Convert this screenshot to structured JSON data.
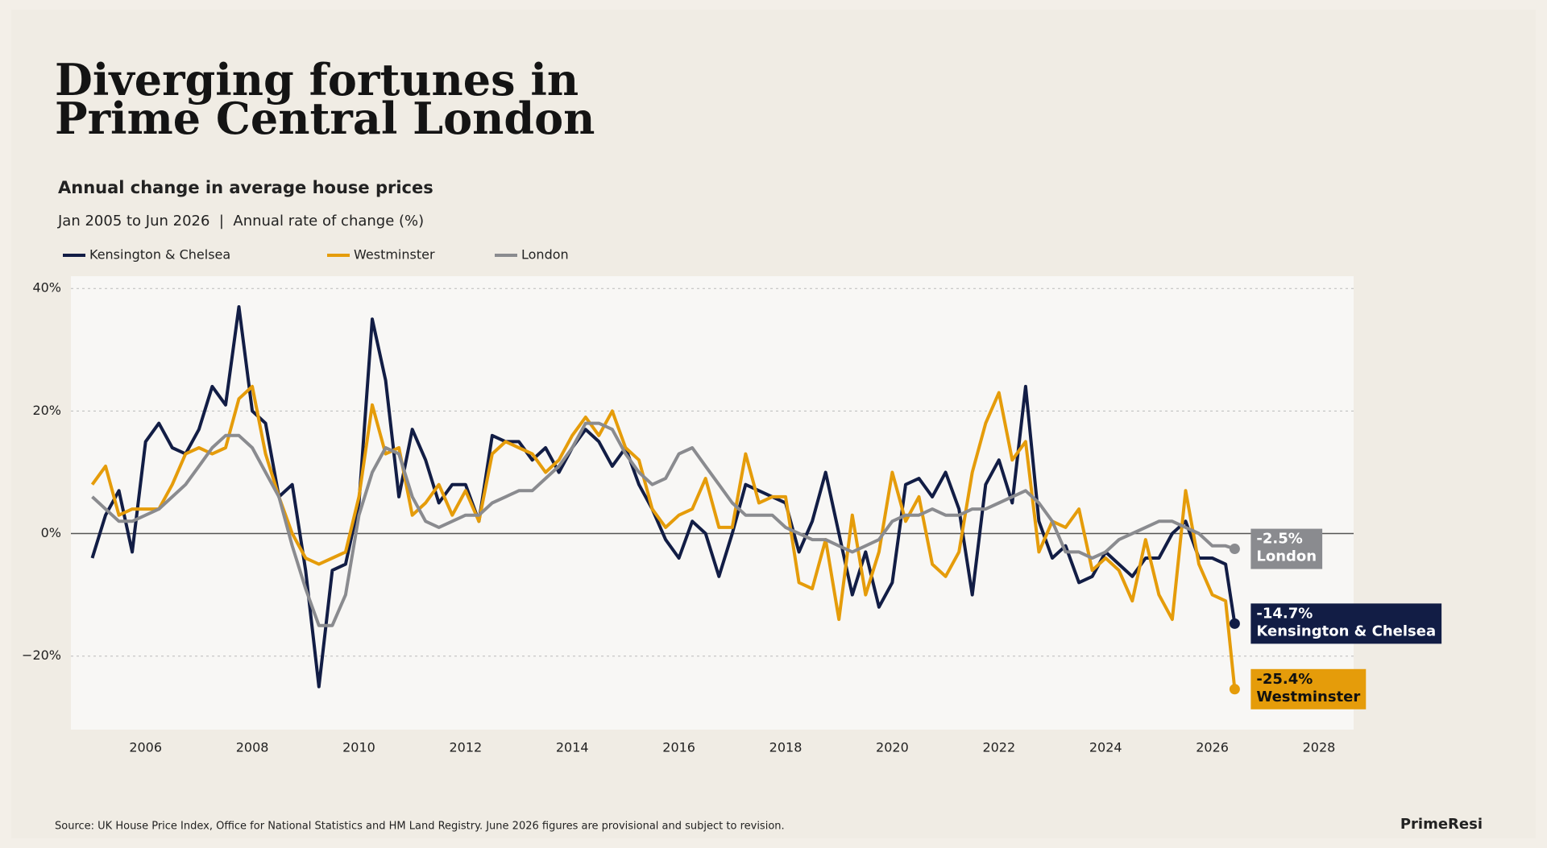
{
  "chart_data": {
    "type": "line",
    "title": [
      "Diverging fortunes in",
      "Prime Central London"
    ],
    "subtitle": "Annual change in average house prices",
    "description": "Jan 2005 to Jun 2026  |  Annual rate of change (%)",
    "source": "Source: UK House Price Index, Office for National Statistics and HM Land Registry. June 2026 figures are provisional and subject to revision.",
    "brand": "PrimeResi",
    "x": [
      2005,
      2005.25,
      2005.5,
      2005.75,
      2006,
      2006.25,
      2006.5,
      2006.75,
      2007,
      2007.25,
      2007.5,
      2007.75,
      2008,
      2008.25,
      2008.5,
      2008.75,
      2009,
      2009.25,
      2009.5,
      2009.75,
      2010,
      2010.25,
      2010.5,
      2010.75,
      2011,
      2011.25,
      2011.5,
      2011.75,
      2012,
      2012.25,
      2012.5,
      2012.75,
      2013,
      2013.25,
      2013.5,
      2013.75,
      2014,
      2014.25,
      2014.5,
      2014.75,
      2015,
      2015.25,
      2015.5,
      2015.75,
      2016,
      2016.25,
      2016.5,
      2016.75,
      2017,
      2017.25,
      2017.5,
      2017.75,
      2018,
      2018.25,
      2018.5,
      2018.75,
      2019,
      2019.25,
      2019.5,
      2019.75,
      2020,
      2020.25,
      2020.5,
      2020.75,
      2021,
      2021.25,
      2021.5,
      2021.75,
      2022,
      2022.25,
      2022.5,
      2022.75,
      2023,
      2023.25,
      2023.5,
      2023.75,
      2024,
      2024.25,
      2024.5,
      2024.75,
      2025,
      2025.25,
      2025.5,
      2025.75,
      2026,
      2026.25,
      2026.42
    ],
    "series": [
      {
        "name": "Kensington & Chelsea",
        "color": "#121d45",
        "label_text": "#ffffff",
        "values": [
          -4,
          3,
          7,
          -3,
          15,
          18,
          14,
          13,
          17,
          24,
          21,
          37,
          20,
          18,
          6,
          8,
          -6,
          -25,
          -6,
          -5,
          5,
          35,
          25,
          6,
          17,
          12,
          5,
          8,
          8,
          2,
          16,
          15,
          15,
          12,
          14,
          10,
          14,
          17,
          15,
          11,
          14,
          8,
          4,
          -1,
          -4,
          2,
          0,
          -7,
          0,
          8,
          7,
          6,
          5,
          -3,
          2,
          10,
          0,
          -10,
          -3,
          -12,
          -8,
          8,
          9,
          6,
          10,
          4,
          -10,
          8,
          12,
          5,
          24,
          2,
          -4,
          -2,
          -8,
          -7,
          -3,
          -5,
          -7,
          -4,
          -4,
          0,
          2,
          -4,
          -4,
          -5,
          -14.7
        ],
        "value_labels": [
          null,
          null,
          null,
          null,
          null,
          null,
          null,
          null,
          null,
          null,
          null,
          null,
          null,
          null,
          null,
          null,
          null,
          null,
          null,
          null,
          null,
          null,
          null,
          null,
          null,
          null,
          null,
          null,
          null,
          null,
          null,
          null,
          null,
          null,
          null,
          null,
          null,
          null,
          null,
          null,
          null,
          null,
          null,
          null,
          null,
          null,
          null,
          null,
          null,
          null,
          null,
          null,
          null,
          null,
          null,
          null,
          null,
          null,
          null,
          null,
          null,
          null,
          null,
          null,
          null,
          null,
          null,
          null,
          null,
          null,
          null,
          null,
          null,
          null,
          null,
          null,
          null,
          null,
          null,
          null,
          null,
          null,
          null,
          null,
          null,
          null,
          "-14.7%"
        ]
      },
      {
        "name": "Westminster",
        "color": "#e59c0a",
        "label_text": "#111111",
        "values": [
          8,
          11,
          3,
          4,
          4,
          4,
          8,
          13,
          14,
          13,
          14,
          22,
          24,
          13,
          6,
          0,
          -4,
          -5,
          -4,
          -3,
          6,
          21,
          13,
          14,
          3,
          5,
          8,
          3,
          7,
          2,
          13,
          15,
          14,
          13,
          10,
          12,
          16,
          19,
          16,
          20,
          14,
          12,
          4,
          1,
          3,
          4,
          9,
          1,
          1,
          13,
          5,
          6,
          6,
          -8,
          -9,
          -1,
          -14,
          3,
          -10,
          -3,
          10,
          2,
          6,
          -5,
          -7,
          -3,
          10,
          18,
          23,
          12,
          15,
          -3,
          2,
          1,
          4,
          -6,
          -4,
          -6,
          -11,
          -1,
          -10,
          -14,
          7,
          -5,
          -10,
          -11,
          -25.4
        ],
        "value_labels": [
          null,
          null,
          null,
          null,
          null,
          null,
          null,
          null,
          null,
          null,
          null,
          null,
          null,
          null,
          null,
          null,
          null,
          null,
          null,
          null,
          null,
          null,
          null,
          null,
          null,
          null,
          null,
          null,
          null,
          null,
          null,
          null,
          null,
          null,
          null,
          null,
          null,
          null,
          null,
          null,
          null,
          null,
          null,
          null,
          null,
          null,
          null,
          null,
          null,
          null,
          null,
          null,
          null,
          null,
          null,
          null,
          null,
          null,
          null,
          null,
          null,
          null,
          null,
          null,
          null,
          null,
          null,
          null,
          null,
          null,
          null,
          null,
          null,
          null,
          null,
          null,
          null,
          null,
          null,
          null,
          null,
          null,
          null,
          null,
          null,
          null,
          "-25.4%"
        ]
      },
      {
        "name": "London",
        "color": "#8a8b8f",
        "label_text": "#ffffff",
        "values": [
          6,
          4,
          2,
          2,
          3,
          4,
          6,
          8,
          11,
          14,
          16,
          16,
          14,
          10,
          6,
          -2,
          -9,
          -15,
          -15,
          -10,
          3,
          10,
          14,
          13,
          6,
          2,
          1,
          2,
          3,
          3,
          5,
          6,
          7,
          7,
          9,
          11,
          14,
          18,
          18,
          17,
          13,
          10,
          8,
          9,
          13,
          14,
          11,
          8,
          5,
          3,
          3,
          3,
          1,
          0,
          -1,
          -1,
          -2,
          -3,
          -2,
          -1,
          2,
          3,
          3,
          4,
          3,
          3,
          4,
          4,
          5,
          6,
          7,
          5,
          2,
          -3,
          -3,
          -4,
          -3,
          -1,
          0,
          1,
          2,
          2,
          1,
          0,
          -2,
          -2,
          -2.5
        ],
        "value_labels": [
          null,
          null,
          null,
          null,
          null,
          null,
          null,
          null,
          null,
          null,
          null,
          null,
          null,
          null,
          null,
          null,
          null,
          null,
          null,
          null,
          null,
          null,
          null,
          null,
          null,
          null,
          null,
          null,
          null,
          null,
          null,
          null,
          null,
          null,
          null,
          null,
          null,
          null,
          null,
          null,
          null,
          null,
          null,
          null,
          null,
          null,
          null,
          null,
          null,
          null,
          null,
          null,
          null,
          null,
          null,
          null,
          null,
          null,
          null,
          null,
          null,
          null,
          null,
          null,
          null,
          null,
          null,
          null,
          null,
          null,
          null,
          null,
          null,
          null,
          null,
          null,
          null,
          null,
          null,
          null,
          null,
          null,
          null,
          null,
          null,
          null,
          "-2.5%"
        ]
      }
    ],
    "xlim": [
      2004.6,
      2028.65
    ],
    "ylim": [
      -32,
      42
    ],
    "xticks": [
      2006,
      2008,
      2010,
      2012,
      2014,
      2016,
      2018,
      2020,
      2022,
      2024,
      2026,
      2028
    ],
    "yticks": [
      {
        "value": -20,
        "label": "−20%"
      },
      {
        "value": 0,
        "label": "0%"
      },
      {
        "value": 20,
        "label": "20%"
      },
      {
        "value": 40,
        "label": "40%"
      }
    ],
    "grid": true
  }
}
